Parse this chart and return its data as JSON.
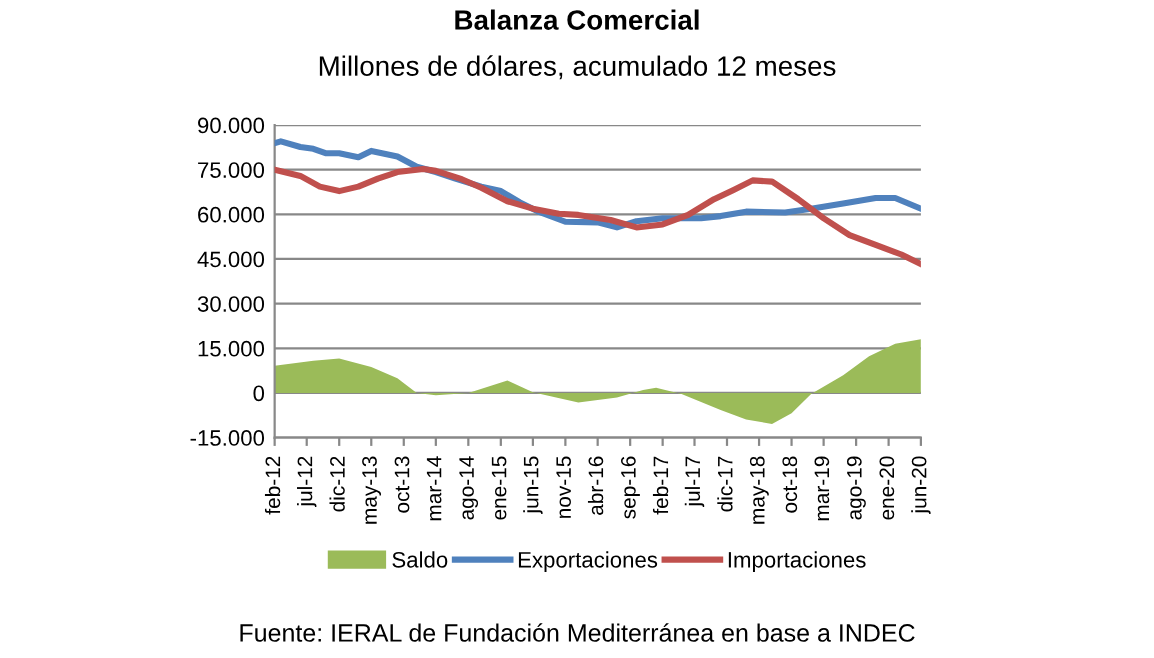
{
  "chart_data": {
    "type": "line",
    "title": "Balanza Comercial",
    "subtitle": "Millones de dólares, acumulado 12 meses",
    "annotations": [
      "Fuente: IERAL de Fundación Mediterránea en base a INDEC"
    ],
    "series": [
      {
        "name": "Saldo",
        "type": "area",
        "color": "#9bbb59",
        "x": [
          "2012-02",
          "2012-08",
          "2012-12",
          "2013-05",
          "2013-09",
          "2013-12",
          "2014-03",
          "2014-08",
          "2015-02",
          "2015-06",
          "2016-01",
          "2016-07",
          "2016-11",
          "2017-01",
          "2017-05",
          "2017-11",
          "2018-03",
          "2018-07",
          "2018-10",
          "2019-01",
          "2019-06",
          "2019-10",
          "2020-02",
          "2020-06"
        ],
        "values": [
          9100,
          10800,
          11600,
          8700,
          4900,
          0,
          -800,
          0,
          4200,
          200,
          -3200,
          -1500,
          1000,
          1700,
          -400,
          -5700,
          -8900,
          -10400,
          -6800,
          -400,
          5900,
          12300,
          16500,
          18000
        ]
      },
      {
        "name": "Exportaciones",
        "color": "#4f81bd",
        "x": [
          "2012-02",
          "2012-03",
          "2012-06",
          "2012-08",
          "2012-10",
          "2012-12",
          "2013-03",
          "2013-05",
          "2013-09",
          "2013-12",
          "2014-03",
          "2014-06",
          "2014-10",
          "2015-01",
          "2015-04",
          "2015-07",
          "2015-11",
          "2016-04",
          "2016-07",
          "2016-10",
          "2017-02",
          "2017-08",
          "2017-11",
          "2018-03",
          "2018-09",
          "2019-01",
          "2019-06",
          "2019-11",
          "2020-02",
          "2020-06"
        ],
        "values": [
          83900,
          84500,
          82600,
          82000,
          80500,
          80500,
          79200,
          81300,
          79400,
          76000,
          74200,
          72000,
          69300,
          67800,
          64000,
          60800,
          57500,
          57300,
          55600,
          57700,
          58700,
          58700,
          59400,
          60900,
          60600,
          61900,
          63600,
          65500,
          65500,
          61900
        ]
      },
      {
        "name": "Importaciones",
        "color": "#c0504d",
        "x": [
          "2012-02",
          "2012-06",
          "2012-09",
          "2012-12",
          "2013-03",
          "2013-06",
          "2013-09",
          "2014-01",
          "2014-03",
          "2014-07",
          "2014-10",
          "2015-02",
          "2015-06",
          "2015-10",
          "2016-01",
          "2016-06",
          "2016-10",
          "2017-02",
          "2017-06",
          "2017-10",
          "2018-01",
          "2018-04",
          "2018-07",
          "2018-11",
          "2019-03",
          "2019-07",
          "2019-11",
          "2020-03",
          "2020-06"
        ],
        "values": [
          75000,
          72900,
          69300,
          67800,
          69300,
          72000,
          74200,
          75200,
          74600,
          71800,
          68900,
          64400,
          61900,
          60200,
          59800,
          58100,
          55600,
          56600,
          59800,
          65100,
          68200,
          71400,
          71000,
          65100,
          58700,
          53000,
          49700,
          46500,
          43300
        ]
      }
    ],
    "xlim": [
      "2012-02",
      "2020-06"
    ],
    "xticks": [
      {
        "value": "2012-02",
        "label": "feb-12"
      },
      {
        "value": "2012-07",
        "label": "jul-12"
      },
      {
        "value": "2012-12",
        "label": "dic-12"
      },
      {
        "value": "2013-05",
        "label": "may-13"
      },
      {
        "value": "2013-10",
        "label": "oct-13"
      },
      {
        "value": "2014-03",
        "label": "mar-14"
      },
      {
        "value": "2014-08",
        "label": "ago-14"
      },
      {
        "value": "2015-01",
        "label": "ene-15"
      },
      {
        "value": "2015-06",
        "label": "jun-15"
      },
      {
        "value": "2015-11",
        "label": "nov-15"
      },
      {
        "value": "2016-04",
        "label": "abr-16"
      },
      {
        "value": "2016-09",
        "label": "sep-16"
      },
      {
        "value": "2017-02",
        "label": "feb-17"
      },
      {
        "value": "2017-07",
        "label": "jul-17"
      },
      {
        "value": "2017-12",
        "label": "dic-17"
      },
      {
        "value": "2018-05",
        "label": "may-18"
      },
      {
        "value": "2018-10",
        "label": "oct-18"
      },
      {
        "value": "2019-03",
        "label": "mar-19"
      },
      {
        "value": "2019-08",
        "label": "ago-19"
      },
      {
        "value": "2020-01",
        "label": "ene-20"
      },
      {
        "value": "2020-06",
        "label": "jun-20"
      }
    ],
    "ylim": [
      -15000,
      90000
    ],
    "yticks": [
      {
        "value": -15000,
        "label": "-15.000"
      },
      {
        "value": 0,
        "label": "0"
      },
      {
        "value": 15000,
        "label": "15.000"
      },
      {
        "value": 30000,
        "label": "30.000"
      },
      {
        "value": 45000,
        "label": "45.000"
      },
      {
        "value": 60000,
        "label": "60.000"
      },
      {
        "value": 75000,
        "label": "75.000"
      },
      {
        "value": 90000,
        "label": "90.000"
      }
    ],
    "grid": "y",
    "legend": "bottom",
    "marker": "none",
    "line_style": "solid"
  }
}
